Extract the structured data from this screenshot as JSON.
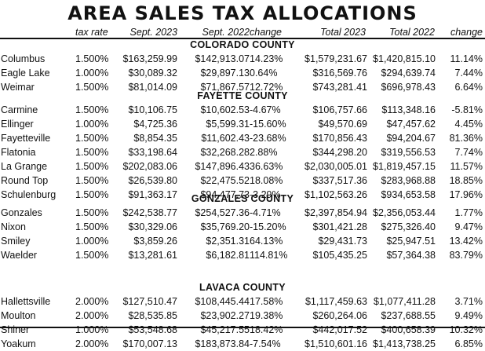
{
  "title": "AREA SALES TAX ALLOCATIONS",
  "columns": [
    "tax rate",
    "Sept. 2023",
    "Sept. 2022",
    "change",
    "Total 2023",
    "Total 2022",
    "change"
  ],
  "sections": [
    {
      "name": "COLORADO COUNTY",
      "rows": [
        [
          "Columbus",
          "1.500%",
          "$163,259.99",
          "$142,913.07",
          "14.23%",
          "$1,579,231.67",
          "$1,420,815.10",
          "11.14%"
        ],
        [
          "Eagle Lake",
          "1.000%",
          "$30,089.32",
          "$29,897.13",
          "0.64%",
          "$316,569.76",
          "$294,639.74",
          "7.44%"
        ],
        [
          "Weimar",
          "1.500%",
          "$81,014.09",
          "$71,867.57",
          "12.72%",
          "$743,281.41",
          "$696,978.43",
          "6.64%"
        ]
      ]
    },
    {
      "name": "FAYETTE COUNTY",
      "rows": [
        [
          "Carmine",
          "1.500%",
          "$10,106.75",
          "$10,602.53",
          "-4.67%",
          "$106,757.66",
          "$113,348.16",
          "-5.81%"
        ],
        [
          "Ellinger",
          "1.000%",
          "$4,725.36",
          "$5,599.31",
          "-15.60%",
          "$49,570.69",
          "$47,457.62",
          "4.45%"
        ],
        [
          "Fayetteville",
          "1.500%",
          "$8,854.35",
          "$11,602.43",
          "-23.68%",
          "$170,856.43",
          "$94,204.67",
          "81.36%"
        ],
        [
          "Flatonia",
          "1.500%",
          "$33,198.64",
          "$32,268.28",
          "2.88%",
          "$344,298.20",
          "$319,556.53",
          "7.74%"
        ],
        [
          "La Grange",
          "1.500%",
          "$202,083.06",
          "$147,896.43",
          "36.63%",
          "$2,030,005.01",
          "$1,819,457.15",
          "11.57%"
        ],
        [
          "Round Top",
          "1.500%",
          "$26,539.80",
          "$22,475.52",
          "18.08%",
          "$337,517.36",
          "$283,968.88",
          "18.85%"
        ],
        [
          "Schulenburg",
          "1.500%",
          "$91,363.17",
          "$94,477.73",
          "-3.29%",
          "$1,102,563.26",
          "$934,653.58",
          "17.96%"
        ]
      ]
    },
    {
      "name": "GONZALES COUNTY",
      "rows": [
        [
          "Gonzales",
          "1.500%",
          "$242,538.77",
          "$254,527.36",
          "-4.71%",
          "$2,397,854.94",
          "$2,356,053.44",
          "1.77%"
        ],
        [
          "Nixon",
          "1.500%",
          "$30,329.06",
          "$35,769.20",
          "-15.20%",
          "$301,421.28",
          "$275,326.40",
          "9.47%"
        ],
        [
          "Smiley",
          "1.000%",
          "$3,859.26",
          "$2,351.31",
          "64.13%",
          "$29,431.73",
          "$25,947.51",
          "13.42%"
        ],
        [
          "Waelder",
          "1.500%",
          "$13,281.61",
          "$6,182.81",
          "114.81%",
          "$105,435.25",
          "$57,364.38",
          "83.79%"
        ]
      ]
    },
    {
      "name": "LAVACA COUNTY",
      "rows": [
        [
          "Hallettsville",
          "2.000%",
          "$127,510.47",
          "$108,445.44",
          "17.58%",
          "$1,117,459.63",
          "$1,077,411.28",
          "3.71%"
        ],
        [
          "Moulton",
          "2.000%",
          "$28,535.85",
          "$23,902.27",
          "19.38%",
          "$260,264.06",
          "$237,688.55",
          "9.49%"
        ],
        [
          "Shiner",
          "1.000%",
          "$53,548.68",
          "$45,217.55",
          "18.42%",
          "$442,017.52",
          "$400,658.39",
          "10.32%"
        ],
        [
          "Yoakum",
          "2.000%",
          "$170,007.13",
          "$183,873.84",
          "-7.54%",
          "$1,510,601.16",
          "$1,413,738.25",
          "6.85%"
        ]
      ]
    }
  ]
}
